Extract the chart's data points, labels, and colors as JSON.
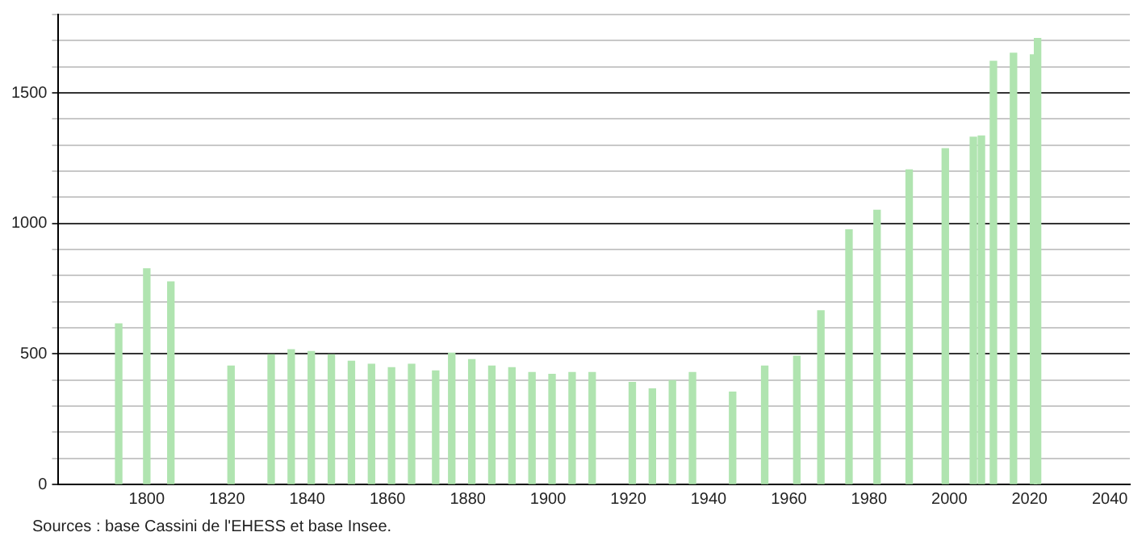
{
  "chart_data": {
    "type": "bar",
    "x": [
      1793,
      1800,
      1806,
      1821,
      1831,
      1836,
      1841,
      1846,
      1851,
      1856,
      1861,
      1866,
      1872,
      1876,
      1881,
      1886,
      1891,
      1896,
      1901,
      1906,
      1911,
      1921,
      1926,
      1931,
      1936,
      1946,
      1954,
      1962,
      1968,
      1975,
      1982,
      1990,
      1999,
      2006,
      2008,
      2011,
      2016,
      2021,
      2022
    ],
    "values": [
      615,
      826,
      776,
      453,
      497,
      516,
      509,
      497,
      472,
      460,
      447,
      460,
      435,
      503,
      478,
      453,
      447,
      429,
      422,
      429,
      429,
      391,
      366,
      398,
      429,
      354,
      453,
      491,
      665,
      975,
      1050,
      1205,
      1286,
      1330,
      1335,
      1621,
      1652,
      1646,
      1708
    ],
    "color": "#b0e4b0",
    "xlim": [
      1778,
      2045
    ],
    "xticks": [
      1800,
      1820,
      1840,
      1860,
      1880,
      1900,
      1920,
      1940,
      1960,
      1980,
      2000,
      2020,
      2040
    ],
    "ylim": [
      0,
      1800
    ],
    "yticks": [
      0,
      {
        "value": 100,
        "label": null
      },
      {
        "value": 200,
        "label": null
      },
      {
        "value": 300,
        "label": null
      },
      {
        "value": 400,
        "label": null
      },
      500,
      {
        "value": 600,
        "label": null
      },
      {
        "value": 700,
        "label": null
      },
      {
        "value": 800,
        "label": null
      },
      {
        "value": 900,
        "label": null
      },
      1000,
      {
        "value": 1100,
        "label": null
      },
      {
        "value": 1200,
        "label": null
      },
      {
        "value": 1300,
        "label": null
      },
      {
        "value": 1400,
        "label": null
      },
      1500,
      {
        "value": 1600,
        "label": null
      },
      {
        "value": 1700,
        "label": null
      },
      {
        "value": 1800,
        "label": null
      }
    ],
    "grid": "y",
    "annotations": [
      "Sources : base Cassini de l'EHESS et base Insee."
    ]
  }
}
